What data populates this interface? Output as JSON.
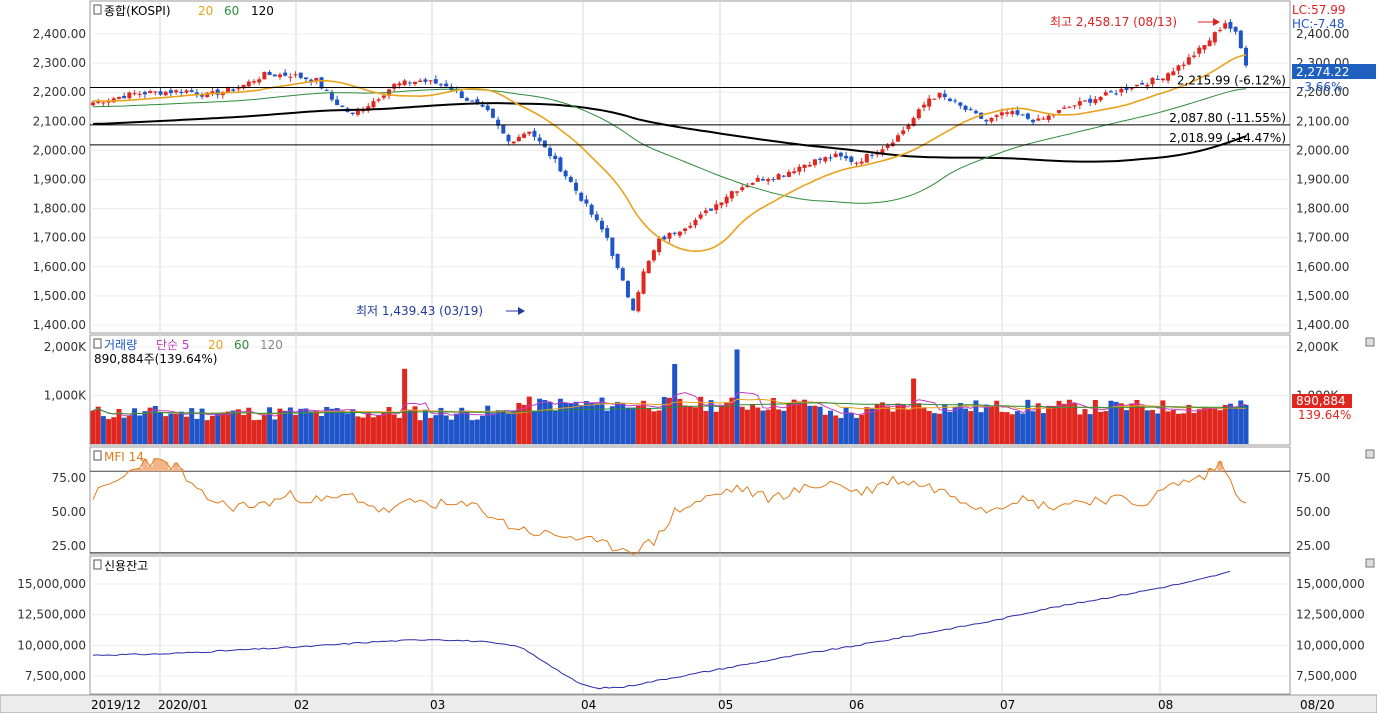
{
  "main_panel": {
    "title": "종합(KOSPI)",
    "ma_labels": [
      "20",
      "60",
      "120"
    ],
    "ma_colors": [
      "#e8a31a",
      "#2e8b3a",
      "#000000"
    ],
    "y_ticks": [
      "2,400.00",
      "2,300.00",
      "2,200.00",
      "2,100.00",
      "2,000.00",
      "1,900.00",
      "1,800.00",
      "1,700.00",
      "1,600.00",
      "1,500.00",
      "1,400.00"
    ],
    "lc_label": "LC:57.99",
    "hc_label": "HC:-7.48",
    "current_price": "2,274.22",
    "current_pct": "-3.66%",
    "high_annotation": "최고 2,458.17 (08/13)",
    "low_annotation": "최저 1,439.43 (03/19)",
    "hlines": [
      {
        "value": 2215.99,
        "label": "2,215.99 (-6.12%)"
      },
      {
        "value": 2087.8,
        "label": "2,087.80 (-11.55%)"
      },
      {
        "value": 2018.99,
        "label": "2,018.99 (-14.47%)"
      }
    ],
    "up_color": "#e0271f",
    "down_color": "#1f55c8"
  },
  "volume_panel": {
    "title": "거래량",
    "ma_title": "단순 5",
    "ma_labels": [
      "20",
      "60",
      "120"
    ],
    "info": "890,884주(139.64%)",
    "y_ticks": [
      "2,000K",
      "1,000K"
    ],
    "current_value": "890,884",
    "current_pct": "139.64%"
  },
  "mfi_panel": {
    "title": "MFI 14",
    "y_ticks": [
      "75.00",
      "50.00",
      "25.00"
    ]
  },
  "credit_panel": {
    "title": "신용잔고",
    "y_ticks": [
      "15,000,000",
      "12,500,000",
      "10,000,000",
      "7,500,000"
    ]
  },
  "x_axis": {
    "labels": [
      "2019/12",
      "2020/01",
      "02",
      "03",
      "04",
      "05",
      "06",
      "07",
      "08"
    ],
    "right_label": "08/20"
  },
  "chart_data": [
    {
      "type": "candlestick",
      "title": "종합(KOSPI)",
      "ylim": [
        1400,
        2460
      ],
      "period": "2019/12 - 2020/08",
      "monthly_close": [
        {
          "x": "2019/12",
          "close": 2197.67
        },
        {
          "x": "2020/01",
          "close": 2119.01
        },
        {
          "x": "2020/02",
          "close": 1987.01
        },
        {
          "x": "2020/03",
          "close": 1754.64
        },
        {
          "x": "2020/04",
          "close": 1947.56
        },
        {
          "x": "2020/05",
          "close": 2029.6
        },
        {
          "x": "2020/06",
          "close": 2108.33
        },
        {
          "x": "2020/07",
          "close": 2249.37
        },
        {
          "x": "2020/08",
          "close": 2274.22
        }
      ],
      "high": {
        "value": 2458.17,
        "date": "08/13"
      },
      "low": {
        "value": 1439.43,
        "date": "03/19"
      },
      "last": 2274.22,
      "moving_averages": [
        "20",
        "60",
        "120"
      ]
    },
    {
      "type": "bar",
      "title": "거래량",
      "ylim": [
        0,
        2000000
      ],
      "last": 890884,
      "last_pct": 139.64
    },
    {
      "type": "line",
      "title": "MFI 14",
      "ylim": [
        20,
        90
      ],
      "reference_lines": [
        80,
        20
      ],
      "x": [
        "2019/12",
        "2020/01",
        "2020/02",
        "2020/03",
        "2020/04",
        "2020/05",
        "2020/06",
        "2020/07",
        "2020/08"
      ],
      "values": [
        62,
        55,
        58,
        25,
        65,
        62,
        70,
        55,
        70
      ]
    },
    {
      "type": "line",
      "title": "신용잔고",
      "ylim": [
        6000000,
        16500000
      ],
      "x": [
        "2019/12",
        "2020/01",
        "2020/02",
        "2020/03",
        "2020/04",
        "2020/05",
        "2020/06",
        "2020/07",
        "2020/08"
      ],
      "values": [
        9200000,
        9500000,
        10400000,
        6500000,
        8000000,
        9500000,
        11600000,
        13500000,
        16000000
      ]
    }
  ]
}
